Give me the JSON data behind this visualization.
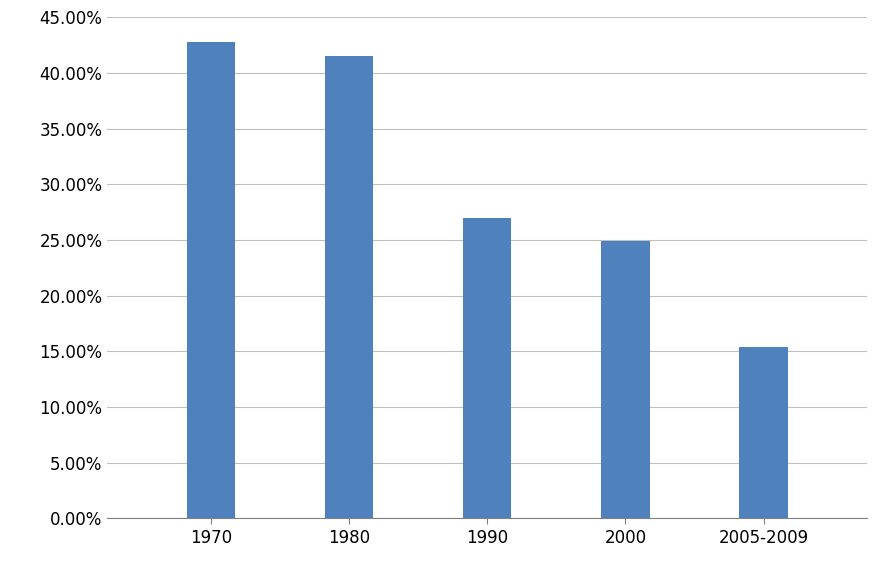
{
  "categories": [
    "1970",
    "1980",
    "1990",
    "2000",
    "2005-2009"
  ],
  "values": [
    0.4275,
    0.415,
    0.27,
    0.249,
    0.154
  ],
  "bar_color": "#4F81BD",
  "background_color": "#ffffff",
  "ylim": [
    0,
    0.45
  ],
  "yticks": [
    0.0,
    0.05,
    0.1,
    0.15,
    0.2,
    0.25,
    0.3,
    0.35,
    0.4,
    0.45
  ],
  "grid_color": "#C0C0C0",
  "bar_width": 0.35,
  "tick_fontsize": 12,
  "spine_color": "#808080",
  "figsize": [
    8.94,
    5.76
  ],
  "dpi": 100
}
